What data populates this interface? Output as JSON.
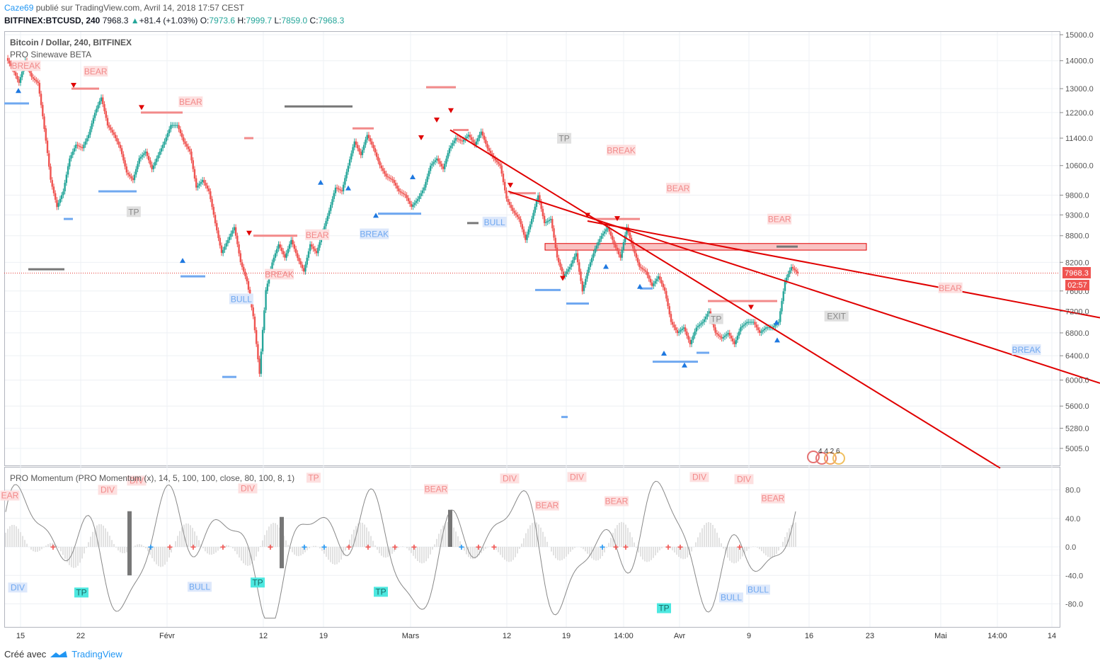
{
  "header": {
    "author": "Caze69",
    "published_text": " publié sur TradingView.com, Avril 14, 2018 17:57 CEST",
    "symbol": "BITFINEX:BTCUSD, 240",
    "price": "7968.3",
    "change": "+81.4 (+1.03%)",
    "o_label": "O:",
    "o": "7973.6",
    "h_label": "H:",
    "h": "7999.7",
    "l_label": "L:",
    "l": "7859.0",
    "c_label": "C:",
    "c": "7968.3"
  },
  "main_pane": {
    "title": "Bitcoin / Dollar, 240, BITFINEX",
    "indicator": "PRO Sinewave BETA",
    "last_price_label": "7968.3",
    "countdown_label": "02:57",
    "mini_counts": "4 4 2 6"
  },
  "momentum_pane": {
    "title": "PRO Momentum (PRO Momentum (x), 14, 5, 100, 100, close, 80, 100, 8, 1)",
    "y_ticks": [
      "80.0",
      "40.0",
      "0.0",
      "-40.0",
      "-80.0"
    ]
  },
  "footer": {
    "created_with": "Créé avec",
    "brand": "TradingView"
  },
  "colors": {
    "up": "#26a69a",
    "down": "#ef5350",
    "trendline": "#e00000",
    "bear": "#f28a8a",
    "bull": "#6fa8f0",
    "grid": "#eef0f4"
  },
  "chart_data": {
    "type": "candlestick",
    "y_axis": {
      "ticks": [
        15000,
        14000,
        13000,
        12200,
        11400,
        10600,
        9800,
        9300,
        8800,
        8200,
        7600,
        7200,
        6800,
        6400,
        6000,
        5600,
        5280,
        5005
      ],
      "scale": "log"
    },
    "x_ticks": [
      "15",
      "22",
      "Févr",
      "12",
      "19",
      "Mars",
      "12",
      "19",
      "14:00",
      "Avr",
      "9",
      "16",
      "23",
      "Mai",
      "14:00",
      "14"
    ],
    "close_path": [
      [
        0,
        14100
      ],
      [
        1,
        13700
      ],
      [
        2,
        13200
      ],
      [
        3,
        14000
      ],
      [
        4,
        13400
      ],
      [
        5,
        13200
      ],
      [
        6,
        11700
      ],
      [
        7,
        10200
      ],
      [
        8,
        9500
      ],
      [
        9,
        9900
      ],
      [
        10,
        10800
      ],
      [
        11,
        11200
      ],
      [
        12,
        11100
      ],
      [
        13,
        11500
      ],
      [
        14,
        12200
      ],
      [
        15,
        12700
      ],
      [
        16,
        11800
      ],
      [
        17,
        11500
      ],
      [
        18,
        11100
      ],
      [
        19,
        10400
      ],
      [
        20,
        10200
      ],
      [
        21,
        10800
      ],
      [
        22,
        11000
      ],
      [
        23,
        10500
      ],
      [
        24,
        10900
      ],
      [
        25,
        11300
      ],
      [
        26,
        11800
      ],
      [
        27,
        11800
      ],
      [
        28,
        11300
      ],
      [
        29,
        11000
      ],
      [
        30,
        10000
      ],
      [
        31,
        10200
      ],
      [
        32,
        9900
      ],
      [
        33,
        9100
      ],
      [
        34,
        8400
      ],
      [
        35,
        8700
      ],
      [
        36,
        9000
      ],
      [
        37,
        8200
      ],
      [
        38,
        7800
      ],
      [
        39,
        7100
      ],
      [
        40,
        6100
      ],
      [
        41,
        7600
      ],
      [
        42,
        8200
      ],
      [
        43,
        8600
      ],
      [
        44,
        8300
      ],
      [
        45,
        8700
      ],
      [
        46,
        8300
      ],
      [
        47,
        8000
      ],
      [
        48,
        8600
      ],
      [
        49,
        8400
      ],
      [
        50,
        8900
      ],
      [
        51,
        9400
      ],
      [
        52,
        10000
      ],
      [
        53,
        9900
      ],
      [
        54,
        10600
      ],
      [
        55,
        11300
      ],
      [
        56,
        10900
      ],
      [
        57,
        11500
      ],
      [
        58,
        11100
      ],
      [
        59,
        10600
      ],
      [
        60,
        10300
      ],
      [
        61,
        10200
      ],
      [
        62,
        9900
      ],
      [
        63,
        9800
      ],
      [
        64,
        9500
      ],
      [
        65,
        9700
      ],
      [
        66,
        10000
      ],
      [
        67,
        10600
      ],
      [
        68,
        10800
      ],
      [
        69,
        10500
      ],
      [
        70,
        11100
      ],
      [
        71,
        11400
      ],
      [
        72,
        11300
      ],
      [
        73,
        11500
      ],
      [
        74,
        11200
      ],
      [
        75,
        11600
      ],
      [
        76,
        11100
      ],
      [
        77,
        10800
      ],
      [
        78,
        10600
      ],
      [
        79,
        9700
      ],
      [
        80,
        9400
      ],
      [
        81,
        9200
      ],
      [
        82,
        8700
      ],
      [
        83,
        9200
      ],
      [
        84,
        9800
      ],
      [
        85,
        9100
      ],
      [
        86,
        9200
      ],
      [
        87,
        8300
      ],
      [
        88,
        7900
      ],
      [
        89,
        8100
      ],
      [
        90,
        8400
      ],
      [
        91,
        7600
      ],
      [
        92,
        8100
      ],
      [
        93,
        8500
      ],
      [
        94,
        8800
      ],
      [
        95,
        9000
      ],
      [
        96,
        8600
      ],
      [
        97,
        8300
      ],
      [
        98,
        9000
      ],
      [
        99,
        8500
      ],
      [
        100,
        8100
      ],
      [
        101,
        8000
      ],
      [
        102,
        7700
      ],
      [
        103,
        7900
      ],
      [
        104,
        7600
      ],
      [
        105,
        7000
      ],
      [
        106,
        6800
      ],
      [
        107,
        6900
      ],
      [
        108,
        6600
      ],
      [
        109,
        6900
      ],
      [
        110,
        7000
      ],
      [
        111,
        7200
      ],
      [
        112,
        6800
      ],
      [
        113,
        6700
      ],
      [
        114,
        6800
      ],
      [
        115,
        6600
      ],
      [
        116,
        6900
      ],
      [
        117,
        7000
      ],
      [
        118,
        7000
      ],
      [
        119,
        6800
      ],
      [
        120,
        6900
      ],
      [
        121,
        6900
      ],
      [
        122,
        7000
      ],
      [
        123,
        7800
      ],
      [
        124,
        8100
      ],
      [
        125,
        7968
      ]
    ],
    "annotations": [
      {
        "text": "BREAK",
        "i": 3,
        "price": 13700,
        "kind": "bear"
      },
      {
        "text": "BEAR",
        "i": 14,
        "price": 13500,
        "kind": "bear"
      },
      {
        "text": "BEAR",
        "i": 29,
        "price": 12450,
        "kind": "bear"
      },
      {
        "text": "TP",
        "i": 20,
        "price": 9300,
        "kind": "neutral"
      },
      {
        "text": "BEAR",
        "i": 49,
        "price": 8750,
        "kind": "bear"
      },
      {
        "text": "BREAK",
        "i": 58,
        "price": 8770,
        "kind": "bull"
      },
      {
        "text": "BREAK",
        "i": 43,
        "price": 7880,
        "kind": "bear"
      },
      {
        "text": "BULL",
        "i": 37,
        "price": 7380,
        "kind": "bull"
      },
      {
        "text": "BULL",
        "i": 77,
        "price": 9050,
        "kind": "bull"
      },
      {
        "text": "TP",
        "i": 88,
        "price": 11300,
        "kind": "neutral"
      },
      {
        "text": "BREAK",
        "i": 97,
        "price": 10950,
        "kind": "bear"
      },
      {
        "text": "BEAR",
        "i": 106,
        "price": 9900,
        "kind": "bear"
      },
      {
        "text": "TP",
        "i": 112,
        "price": 7000,
        "kind": "neutral"
      },
      {
        "text": "BEAR",
        "i": 122,
        "price": 9120,
        "kind": "bear"
      },
      {
        "text": "EXIT",
        "i": 131,
        "price": 7050,
        "kind": "neutral"
      },
      {
        "text": "BEAR",
        "i": 149,
        "price": 7600,
        "kind": "bear"
      },
      {
        "text": "BREAK",
        "i": 161,
        "price": 6450,
        "kind": "bull"
      }
    ],
    "trendlines": [
      {
        "from": [
          636,
          11650
        ],
        "to": [
          1413,
          4750
        ]
      },
      {
        "from": [
          718,
          9900
        ],
        "to": [
          1554,
          5950
        ]
      },
      {
        "from": [
          830,
          9150
        ],
        "to": [
          1554,
          7080
        ]
      }
    ],
    "resistance_zone": {
      "from": 770,
      "to": 1224,
      "low": 8470,
      "high": 8620
    },
    "momentum_labels": [
      {
        "text": "EAR",
        "x": 14,
        "v": 68,
        "kind": "bear"
      },
      {
        "text": "DIV",
        "x": 152,
        "v": 76,
        "kind": "bear"
      },
      {
        "text": "DIV",
        "x": 193,
        "v": 89,
        "kind": "bear"
      },
      {
        "text": "DIV",
        "x": 350,
        "v": 78,
        "kind": "bear"
      },
      {
        "text": "TP",
        "x": 443,
        "v": 93,
        "kind": "bear"
      },
      {
        "text": "BEAR",
        "x": 616,
        "v": 77,
        "kind": "bear"
      },
      {
        "text": "DIV",
        "x": 720,
        "v": 92,
        "kind": "bear"
      },
      {
        "text": "BEAR",
        "x": 773,
        "v": 54,
        "kind": "bear"
      },
      {
        "text": "DIV",
        "x": 815,
        "v": 94,
        "kind": "bear"
      },
      {
        "text": "BEAR",
        "x": 871,
        "v": 60,
        "kind": "bear"
      },
      {
        "text": "DIV",
        "x": 988,
        "v": 94,
        "kind": "bear"
      },
      {
        "text": "DIV",
        "x": 1051,
        "v": 91,
        "kind": "bear"
      },
      {
        "text": "BEAR",
        "x": 1092,
        "v": 64,
        "kind": "bear"
      },
      {
        "text": "DIV",
        "x": 25,
        "v": -61,
        "kind": "bull"
      },
      {
        "text": "TP",
        "x": 115,
        "v": -68,
        "kind": "tp"
      },
      {
        "text": "BULL",
        "x": 282,
        "v": -60,
        "kind": "bull"
      },
      {
        "text": "TP",
        "x": 364,
        "v": -54,
        "kind": "tp"
      },
      {
        "text": "TP",
        "x": 538,
        "v": -67,
        "kind": "tp"
      },
      {
        "text": "TP",
        "x": 938,
        "v": -90,
        "kind": "tp"
      },
      {
        "text": "BULL",
        "x": 1033,
        "v": -75,
        "kind": "bull"
      },
      {
        "text": "BULL",
        "x": 1071,
        "v": -64,
        "kind": "bull"
      }
    ]
  }
}
